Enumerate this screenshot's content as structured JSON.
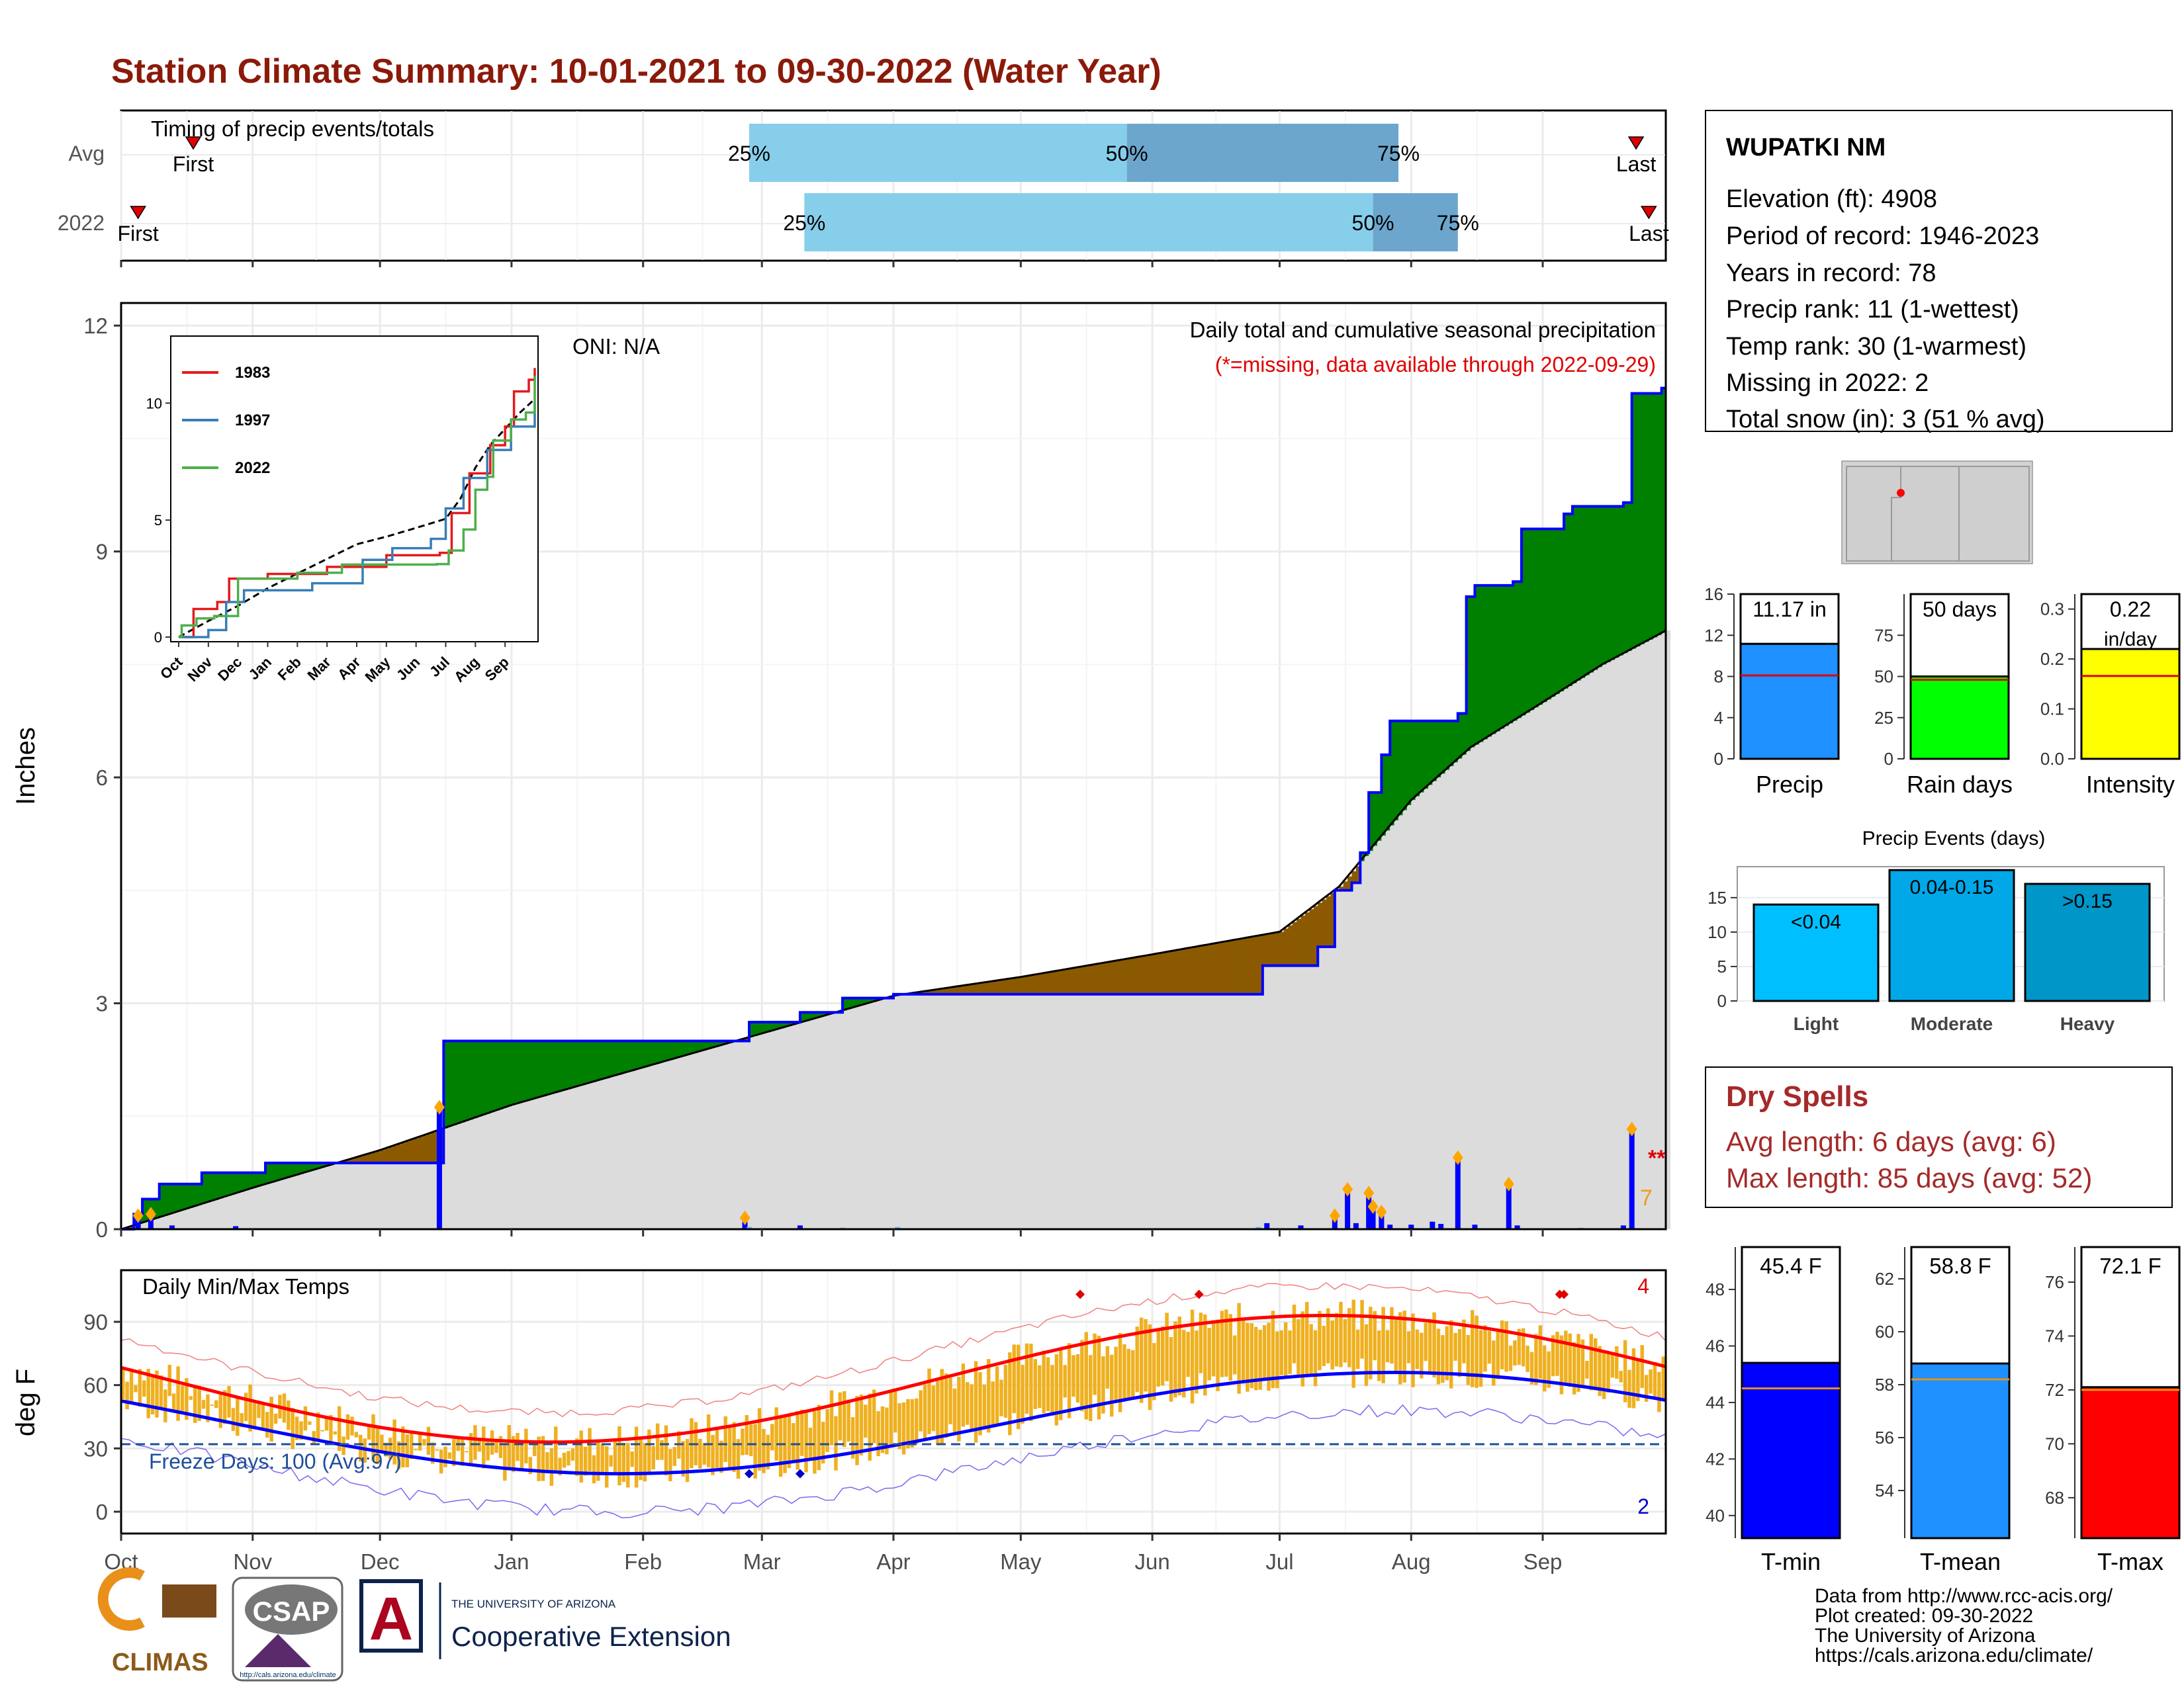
{
  "title": "Station Climate Summary: 10-01-2021 to 09-30-2022 (Water Year)",
  "timing_panel": {
    "label": "Timing of precip events/totals",
    "rows": [
      "Avg",
      "2022"
    ],
    "first_label": "First",
    "last_label": "Last",
    "pct_labels": [
      "25%",
      "50%",
      "75%"
    ],
    "avg": {
      "first": "Oct 18",
      "p25": "Feb 26",
      "p50": "May 26",
      "p75": "Jul 29",
      "last": "Sep 23"
    },
    "y2022": {
      "first": "Oct 5",
      "p25": "Mar 11",
      "p50": "Jul 23",
      "p75": "Aug 12",
      "last": "Sep 26"
    }
  },
  "precip_panel": {
    "ylabel": "Inches",
    "yticks": [
      "0",
      "3",
      "6",
      "9",
      "12"
    ],
    "oni": "ONI: N/A",
    "caption": "Daily total and cumulative seasonal precipitation",
    "missing_note": "(*=missing, data available through 2022-09-29)",
    "missing_marker": "**",
    "missing_count": "7"
  },
  "inset": {
    "yticks": [
      "0",
      "5",
      "10"
    ],
    "xticks": [
      "Oct",
      "Nov",
      "Dec",
      "Jan",
      "Feb",
      "Mar",
      "Apr",
      "May",
      "Jun",
      "Jul",
      "Aug",
      "Sep"
    ],
    "legend": [
      "1983",
      "1997",
      "2022"
    ],
    "colors": {
      "1983": "#e41a1c",
      "1997": "#377eb8",
      "2022": "#4daf4a"
    }
  },
  "temp_panel": {
    "ylabel": "deg F",
    "label": "Daily Min/Max Temps",
    "yticks": [
      "0",
      "30",
      "60",
      "90"
    ],
    "freeze": "Freeze Days: 100 (Avg:97)",
    "record_high_count": "4",
    "record_low_count": "2"
  },
  "months": [
    "Oct",
    "Nov",
    "Dec",
    "Jan",
    "Feb",
    "Mar",
    "Apr",
    "May",
    "Jun",
    "Jul",
    "Aug",
    "Sep"
  ],
  "station": {
    "name": "WUPATKI NM",
    "lines": [
      "Elevation (ft): 4908",
      "Period of record: 1946-2023",
      "Years in record: 78",
      "Precip rank: 11 (1-wettest)",
      "Temp rank: 30 (1-warmest)",
      "Missing in 2022: 2",
      "Total snow (in): 3 (51 % avg)"
    ]
  },
  "mini_bars": [
    {
      "label": "Precip",
      "value_text": "11.17 in",
      "value": 11.17,
      "avg": 8.1,
      "max": 16,
      "ticks": [
        "0",
        "4",
        "8",
        "12",
        "16"
      ],
      "color": "#1e90ff"
    },
    {
      "label": "Rain days",
      "value_text": "50 days",
      "value": 50,
      "avg": 48,
      "max": 100,
      "ticks": [
        "0",
        "25",
        "50",
        "75"
      ],
      "color": "#00ff00"
    },
    {
      "label": "Intensity",
      "value_text": "0.22",
      "value_text2": "in/day",
      "value": 0.22,
      "avg": 0.166,
      "max": 0.33,
      "ticks": [
        "0.0",
        "0.1",
        "0.2",
        "0.3"
      ],
      "color": "#ffff00"
    }
  ],
  "events": {
    "title": "Precip Events (days)",
    "ticks": [
      "0",
      "5",
      "10",
      "15"
    ],
    "bars": [
      {
        "label": "Light",
        "range": "<0.04",
        "value": 14,
        "color": "#00bfff"
      },
      {
        "label": "Moderate",
        "range": "0.04-0.15",
        "value": 19,
        "color": "#00a8e8"
      },
      {
        "label": "Heavy",
        "range": ">0.15",
        "value": 17,
        "color": "#0096c8"
      }
    ]
  },
  "dry_spells": {
    "title": "Dry Spells",
    "avg": "Avg length: 6 days (avg: 6)",
    "max": "Max length: 85 days (avg: 52)"
  },
  "temp_bars": [
    {
      "label": "T-min",
      "value_text": "45.4 F",
      "value": 45.4,
      "avg": 44.5,
      "min": 39.2,
      "max": 49.5,
      "ticks": [
        "40",
        "42",
        "44",
        "46",
        "48"
      ],
      "color": "#0000ff"
    },
    {
      "label": "T-mean",
      "value_text": "58.8 F",
      "value": 58.8,
      "avg": 58.2,
      "min": 52.2,
      "max": 63.2,
      "ticks": [
        "54",
        "56",
        "58",
        "60",
        "62"
      ],
      "color": "#1e90ff"
    },
    {
      "label": "T-max",
      "value_text": "72.1 F",
      "value": 72.1,
      "avg": 72.0,
      "min": 66.5,
      "max": 77.3,
      "ticks": [
        "68",
        "70",
        "72",
        "74",
        "76"
      ],
      "color": "#ff0000"
    }
  ],
  "footer": {
    "lines": [
      "Data from http://www.rcc-acis.org/",
      "Plot created: 09-30-2022",
      "The University of Arizona",
      "https://cals.arizona.edu/climate/"
    ],
    "logo_climas": "CLIMAS",
    "logo_csap": "CSAP",
    "logo_csap_url": "http://cals.arizona.edu/climate",
    "coop_small": "THE UNIVERSITY OF ARIZONA",
    "coop_big": "Cooperative Extension",
    "ua_letter": "A"
  },
  "chart_data": {
    "type": "area",
    "title": "Daily total and cumulative seasonal precipitation",
    "ylabel": "Inches",
    "ylim": [
      0,
      12.3
    ],
    "x_range": [
      "2021-10-01",
      "2022-09-30"
    ],
    "series": [
      {
        "name": "",
        "x": [
          "2021-10-01",
          "2021-10-04",
          "2021-10-06",
          "2021-10-10",
          "2021-10-20",
          "2021-11-04",
          "2021-11-20",
          "2021-12-15",
          "2021-12-16",
          "2022-02-23",
          "2022-02-26",
          "2022-03-10",
          "2022-03-20",
          "2022-04-01",
          "2022-06-24",
          "2022-06-27",
          "2022-07-10",
          "2022-07-14",
          "2022-07-18",
          "2022-07-20",
          "2022-07-22",
          "2022-07-25",
          "2022-07-27",
          "2022-08-12",
          "2022-08-14",
          "2022-08-16",
          "2022-08-25",
          "2022-08-27",
          "2022-09-06",
          "2022-09-08",
          "2022-09-20",
          "2022-09-22",
          "2022-09-29"
        ],
        "values": [
          0,
          0.2,
          0.4,
          0.6,
          0.75,
          0.88,
          0.88,
          0.88,
          2.5,
          2.5,
          2.75,
          2.88,
          3.07,
          3.12,
          3.12,
          3.5,
          3.75,
          4.5,
          4.6,
          5.0,
          5.8,
          6.3,
          6.75,
          6.85,
          8.4,
          8.55,
          8.6,
          9.3,
          9.5,
          9.6,
          9.65,
          11.1,
          11.17
        ]
      },
      {
        "name": "",
        "x": [
          "2021-10-01",
          "2021-11-01",
          "2021-12-01",
          "2022-01-01",
          "2022-02-01",
          "2022-03-01",
          "2022-04-01",
          "2022-05-01",
          "2022-06-01",
          "2022-07-01",
          "2022-07-15",
          "2022-08-01",
          "2022-08-15",
          "2022-09-01",
          "2022-09-15",
          "2022-09-30"
        ],
        "values": [
          0,
          0.55,
          1.05,
          1.65,
          2.15,
          2.6,
          3.1,
          3.35,
          3.65,
          3.95,
          4.55,
          5.7,
          6.4,
          7.0,
          7.5,
          7.95
        ]
      }
    ],
    "daily_bars": {
      "x": [
        "2021-10-05",
        "2021-10-08",
        "2021-10-13",
        "2021-10-28",
        "2021-12-15",
        "2022-02-25",
        "2022-02-26",
        "2022-03-10",
        "2022-03-20",
        "2022-04-02",
        "2022-06-26",
        "2022-06-28",
        "2022-07-06",
        "2022-07-14",
        "2022-07-17",
        "2022-07-19",
        "2022-07-22",
        "2022-07-23",
        "2022-07-25",
        "2022-07-27",
        "2022-08-01",
        "2022-08-06",
        "2022-08-08",
        "2022-08-12",
        "2022-08-16",
        "2022-08-24",
        "2022-08-26",
        "2022-09-10",
        "2022-09-20",
        "2022-09-22"
      ],
      "values": [
        0.18,
        0.2,
        0.05,
        0.04,
        1.62,
        0.15,
        0.03,
        0.05,
        0.02,
        0.03,
        0.03,
        0.08,
        0.05,
        0.18,
        0.53,
        0.08,
        0.48,
        0.3,
        0.23,
        0.06,
        0.06,
        0.1,
        0.07,
        0.95,
        0.06,
        0.6,
        0.05,
        0.02,
        0.05,
        1.33
      ]
    }
  }
}
